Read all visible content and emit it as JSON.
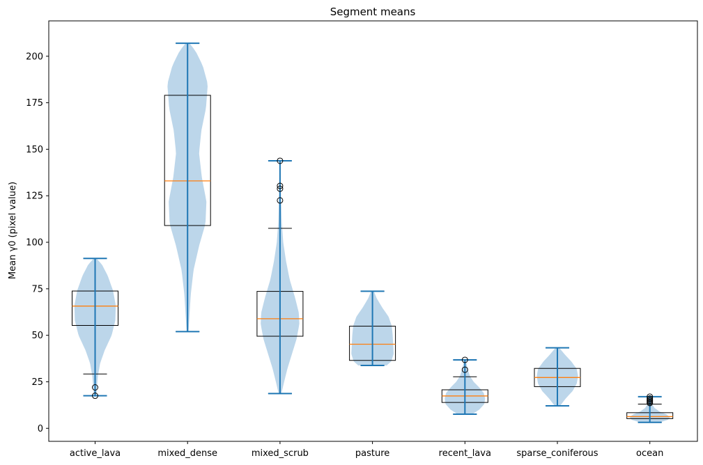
{
  "chart_data": {
    "type": "violin",
    "title": "Segment means",
    "xlabel": "",
    "ylabel": "Mean γ0 (pixel value)",
    "ylim": [
      -7,
      219
    ],
    "yticks": [
      0,
      25,
      50,
      75,
      100,
      125,
      150,
      175,
      200
    ],
    "grid": false,
    "overlay": "boxplot",
    "colors": {
      "violin_fill": "#a6c8e3",
      "violin_line": "#1f77b4",
      "median": "#ff7f0e",
      "box": "#000000"
    },
    "categories": [
      "active_lava",
      "mixed_dense",
      "mixed_scrub",
      "pasture",
      "recent_lava",
      "sparse_coniferous",
      "ocean"
    ],
    "series": [
      {
        "category": "active_lava",
        "min": 17.5,
        "max": 91.3,
        "q1": 55.3,
        "median": 65.7,
        "q3": 73.8,
        "whisker_low": 29.2,
        "whisker_high": 91.3,
        "outliers": [
          17.5,
          22.0
        ],
        "density": [
          [
            17.5,
            0.05
          ],
          [
            22,
            0.08
          ],
          [
            28,
            0.12
          ],
          [
            35,
            0.22
          ],
          [
            42,
            0.42
          ],
          [
            50,
            0.72
          ],
          [
            58,
            0.88
          ],
          [
            66,
            0.9
          ],
          [
            74,
            0.78
          ],
          [
            82,
            0.55
          ],
          [
            88,
            0.3
          ],
          [
            91.3,
            0.06
          ]
        ]
      },
      {
        "category": "mixed_dense",
        "min": 52,
        "max": 207,
        "q1": 109,
        "median": 133,
        "q3": 179,
        "whisker_low": 52,
        "whisker_high": 207,
        "outliers": [],
        "density": [
          [
            52,
            0.04
          ],
          [
            60,
            0.08
          ],
          [
            72,
            0.14
          ],
          [
            85,
            0.26
          ],
          [
            98,
            0.5
          ],
          [
            110,
            0.78
          ],
          [
            122,
            0.82
          ],
          [
            135,
            0.62
          ],
          [
            148,
            0.5
          ],
          [
            160,
            0.6
          ],
          [
            172,
            0.8
          ],
          [
            185,
            0.88
          ],
          [
            195,
            0.66
          ],
          [
            203,
            0.34
          ],
          [
            207,
            0.08
          ]
        ]
      },
      {
        "category": "mixed_scrub",
        "min": 18.7,
        "max": 143.8,
        "q1": 49.5,
        "median": 58.9,
        "q3": 73.6,
        "whisker_low": 18.7,
        "whisker_high": 107.5,
        "outliers": [
          122.5,
          128.8,
          130.3,
          143.8
        ],
        "density": [
          [
            18.7,
            0.06
          ],
          [
            25,
            0.18
          ],
          [
            32,
            0.32
          ],
          [
            40,
            0.52
          ],
          [
            48,
            0.72
          ],
          [
            56,
            0.84
          ],
          [
            62,
            0.82
          ],
          [
            70,
            0.66
          ],
          [
            80,
            0.42
          ],
          [
            90,
            0.26
          ],
          [
            100,
            0.14
          ],
          [
            110,
            0.08
          ],
          [
            122,
            0.05
          ],
          [
            132,
            0.03
          ],
          [
            143.8,
            0.02
          ]
        ]
      },
      {
        "category": "pasture",
        "min": 33.8,
        "max": 73.7,
        "q1": 36.5,
        "median": 45.2,
        "q3": 54.9,
        "whisker_low": 33.8,
        "whisker_high": 73.7,
        "outliers": [],
        "density": [
          [
            33.8,
            0.62
          ],
          [
            36,
            0.82
          ],
          [
            40,
            0.92
          ],
          [
            45,
            0.9
          ],
          [
            50,
            0.88
          ],
          [
            55,
            0.84
          ],
          [
            60,
            0.7
          ],
          [
            65,
            0.42
          ],
          [
            70,
            0.18
          ],
          [
            73.7,
            0.06
          ]
        ]
      },
      {
        "category": "recent_lava",
        "min": 7.6,
        "max": 36.8,
        "q1": 13.9,
        "median": 17.4,
        "q3": 20.7,
        "whisker_low": 7.6,
        "whisker_high": 27.7,
        "outliers": [
          31.5,
          36.8
        ],
        "density": [
          [
            7.6,
            0.32
          ],
          [
            10,
            0.62
          ],
          [
            13,
            0.84
          ],
          [
            16,
            0.88
          ],
          [
            19,
            0.82
          ],
          [
            22,
            0.62
          ],
          [
            25,
            0.38
          ],
          [
            28,
            0.22
          ],
          [
            31,
            0.14
          ],
          [
            34,
            0.08
          ],
          [
            36.8,
            0.04
          ]
        ]
      },
      {
        "category": "sparse_coniferous",
        "min": 12.1,
        "max": 43.3,
        "q1": 22.4,
        "median": 27.3,
        "q3": 32.2,
        "whisker_low": 12.1,
        "whisker_high": 43.3,
        "outliers": [],
        "density": [
          [
            12.1,
            0.12
          ],
          [
            16,
            0.36
          ],
          [
            20,
            0.66
          ],
          [
            24,
            0.84
          ],
          [
            28,
            0.9
          ],
          [
            32,
            0.84
          ],
          [
            36,
            0.6
          ],
          [
            40,
            0.3
          ],
          [
            43.3,
            0.08
          ]
        ]
      },
      {
        "category": "ocean",
        "min": 3.2,
        "max": 17.0,
        "q1": 5.2,
        "median": 6.3,
        "q3": 8.4,
        "whisker_low": 3.2,
        "whisker_high": 13.0,
        "outliers": [
          13.6,
          14.2,
          14.8,
          15.4,
          16.0,
          17.0
        ],
        "density": [
          [
            3.2,
            0.42
          ],
          [
            4.5,
            0.78
          ],
          [
            6,
            0.88
          ],
          [
            7.5,
            0.72
          ],
          [
            9,
            0.42
          ],
          [
            11,
            0.2
          ],
          [
            13,
            0.1
          ],
          [
            15,
            0.06
          ],
          [
            17,
            0.03
          ]
        ]
      }
    ]
  }
}
